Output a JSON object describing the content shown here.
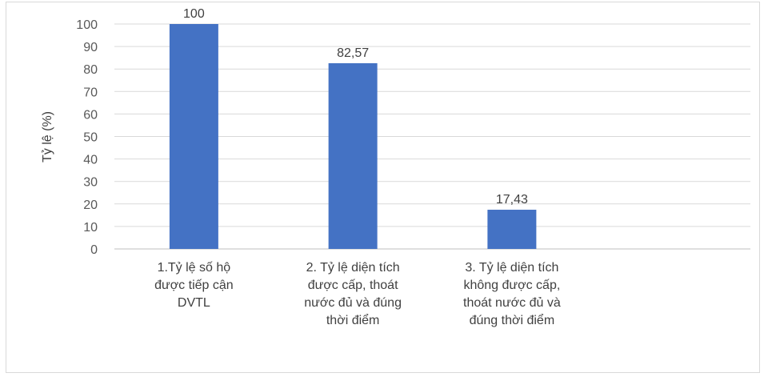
{
  "chart_data": {
    "type": "bar",
    "ylabel": "Tỷ lệ (%)",
    "xlabel": "",
    "ylim": [
      0,
      100
    ],
    "yticks": [
      0,
      10,
      20,
      30,
      40,
      50,
      60,
      70,
      80,
      90,
      100
    ],
    "categories": [
      "1.Tỷ lệ số hộ được tiếp cận DVTL",
      "2. Tỷ lệ diện tích được cấp, thoát nước đủ và đúng thời điểm",
      "3. Tỷ lệ diện tích không được cấp, thoát nước đủ và đúng thời điểm"
    ],
    "category_lines": [
      [
        "1.Tỷ lệ số hộ",
        "được tiếp cận",
        "DVTL"
      ],
      [
        "2. Tỷ lệ diện tích",
        "được cấp, thoát",
        "nước đủ và đúng",
        "thời điểm"
      ],
      [
        "3. Tỷ lệ diện tích",
        "không được cấp,",
        "thoát nước đủ và",
        "đúng thời điểm"
      ]
    ],
    "values": [
      100,
      82.57,
      17.43
    ],
    "data_labels": [
      "100",
      "82,57",
      "17,43"
    ],
    "bar_color": "#4472c4",
    "grid": true,
    "legend": "none"
  }
}
